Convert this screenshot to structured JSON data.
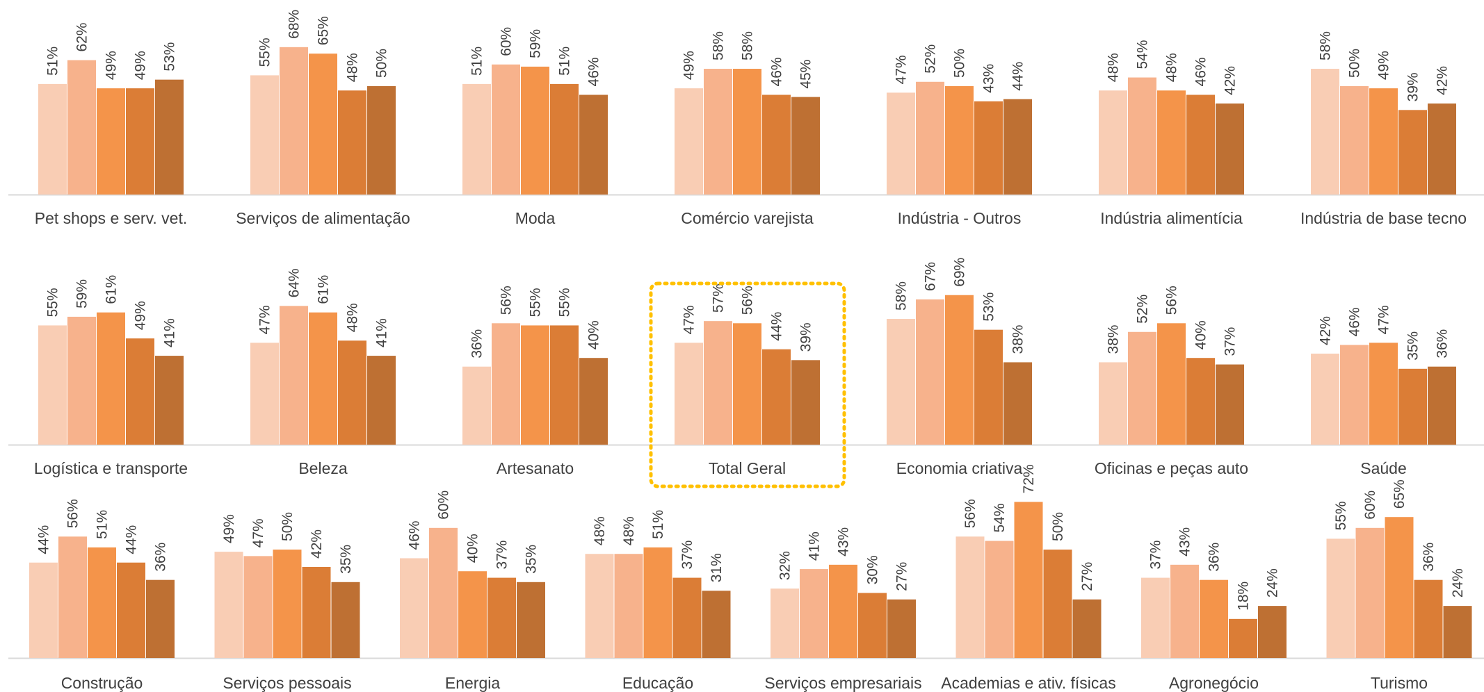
{
  "colors": {
    "series": [
      "#F9CDB4",
      "#F7B28C",
      "#F4944A",
      "#DB7D36",
      "#BE7033"
    ],
    "axis": "#D9D9D9",
    "text": "#404040",
    "highlight": "#FFC000"
  },
  "chart_data": {
    "type": "bar",
    "series_count": 5,
    "value_format": "percent",
    "highlighted_category": "Total Geral",
    "rows": [
      {
        "categories": [
          {
            "name": "Pet shops e serv. vet.",
            "values": [
              51,
              62,
              49,
              49,
              53
            ]
          },
          {
            "name": "Serviços de alimentação",
            "values": [
              55,
              68,
              65,
              48,
              50
            ]
          },
          {
            "name": "Moda",
            "values": [
              51,
              60,
              59,
              51,
              46
            ]
          },
          {
            "name": "Comércio varejista",
            "values": [
              49,
              58,
              58,
              46,
              45
            ]
          },
          {
            "name": "Indústria - Outros",
            "values": [
              47,
              52,
              50,
              43,
              44
            ]
          },
          {
            "name": "Indústria alimentícia",
            "values": [
              48,
              54,
              48,
              46,
              42
            ]
          },
          {
            "name": "Indústria de base tecno",
            "values": [
              58,
              50,
              49,
              39,
              42
            ]
          }
        ]
      },
      {
        "categories": [
          {
            "name": "Logística e transporte",
            "values": [
              55,
              59,
              61,
              49,
              41
            ]
          },
          {
            "name": "Beleza",
            "values": [
              47,
              64,
              61,
              48,
              41
            ]
          },
          {
            "name": "Artesanato",
            "values": [
              36,
              56,
              55,
              55,
              40
            ]
          },
          {
            "name": "Total Geral",
            "values": [
              47,
              57,
              56,
              44,
              39
            ]
          },
          {
            "name": "Economia criativa",
            "values": [
              58,
              67,
              69,
              53,
              38
            ]
          },
          {
            "name": "Oficinas e peças auto",
            "values": [
              38,
              52,
              56,
              40,
              37
            ]
          },
          {
            "name": "Saúde",
            "values": [
              42,
              46,
              47,
              35,
              36
            ]
          }
        ]
      },
      {
        "categories": [
          {
            "name": "Construção",
            "values": [
              44,
              56,
              51,
              44,
              36
            ]
          },
          {
            "name": "Serviços pessoais",
            "values": [
              49,
              47,
              50,
              42,
              35
            ]
          },
          {
            "name": "Energia",
            "values": [
              46,
              60,
              40,
              37,
              35
            ]
          },
          {
            "name": "Educação",
            "values": [
              48,
              48,
              51,
              37,
              31
            ]
          },
          {
            "name": "Serviços empresariais",
            "values": [
              32,
              41,
              43,
              30,
              27
            ]
          },
          {
            "name": "Academias e ativ. físicas",
            "values": [
              56,
              54,
              72,
              50,
              27
            ]
          },
          {
            "name": "Agronegócio",
            "values": [
              37,
              43,
              36,
              18,
              24
            ]
          },
          {
            "name": "Turismo",
            "values": [
              55,
              60,
              65,
              36,
              24
            ]
          }
        ]
      }
    ]
  }
}
